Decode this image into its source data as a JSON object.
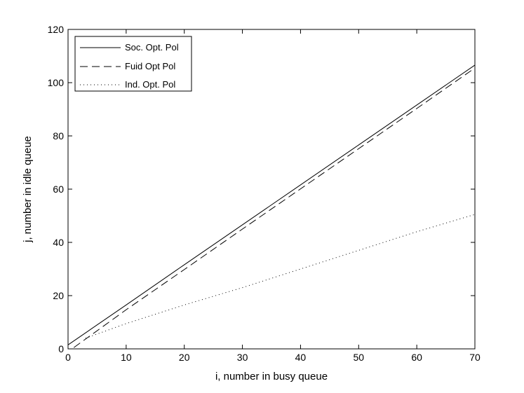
{
  "chart_data": {
    "type": "line",
    "title": "",
    "xlabel": "i, number in busy queue",
    "ylabel": "j, number in idle queue",
    "xlim": [
      0,
      70
    ],
    "ylim": [
      0,
      120
    ],
    "xticks": [
      0,
      10,
      20,
      30,
      40,
      50,
      60,
      70
    ],
    "yticks": [
      0,
      20,
      40,
      60,
      80,
      100,
      120
    ],
    "xtick_labels": [
      "0",
      "10",
      "20",
      "30",
      "40",
      "50",
      "60",
      "70"
    ],
    "ytick_labels": [
      "0",
      "20",
      "40",
      "60",
      "80",
      "100",
      "120"
    ],
    "grid": false,
    "legend_position": "top-left",
    "series": [
      {
        "name": "Soc. Opt. Pol",
        "style": "solid",
        "color": "#000000",
        "x": [
          0,
          10,
          20,
          30,
          40,
          50,
          60,
          70
        ],
        "y": [
          1.5,
          16.5,
          31.6,
          46.6,
          61.6,
          76.6,
          91.6,
          106.6
        ]
      },
      {
        "name": "Fuid Opt Pol",
        "style": "dashed",
        "color": "#000000",
        "x": [
          1,
          10,
          20,
          30,
          40,
          50,
          60,
          70
        ],
        "y": [
          0.5,
          14.7,
          29.8,
          45.0,
          60.1,
          75.2,
          90.3,
          105.5
        ]
      },
      {
        "name": "Ind. Opt. Pol",
        "style": "dotted",
        "color": "#000000",
        "x": [
          3,
          10,
          20,
          30,
          40,
          50,
          60,
          70
        ],
        "y": [
          4.0,
          9.5,
          16.5,
          23.0,
          30.0,
          37.0,
          44.0,
          50.5
        ]
      }
    ]
  }
}
